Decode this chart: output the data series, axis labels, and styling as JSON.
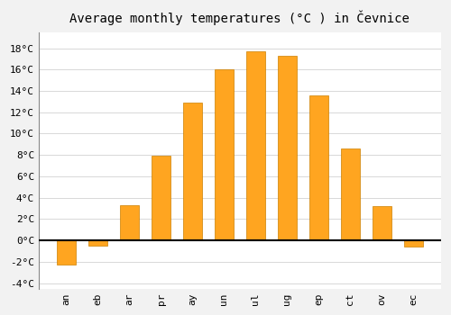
{
  "title": "Average monthly temperatures (°C ) in Čevnice",
  "months": [
    "an",
    "eb",
    "ar",
    "pr",
    "ay",
    "un",
    "ul",
    "ug",
    "ep",
    "ct",
    "ov",
    "ec"
  ],
  "values": [
    -2.3,
    -0.5,
    3.3,
    7.9,
    12.9,
    16.0,
    17.7,
    17.3,
    13.6,
    8.6,
    3.2,
    -0.6
  ],
  "bar_color": "#FFA520",
  "bar_edge_color": "#CC8000",
  "background_color": "#f2f2f2",
  "plot_bg_color": "#ffffff",
  "ylim": [
    -4.5,
    19.5
  ],
  "yticks": [
    -4,
    -2,
    0,
    2,
    4,
    6,
    8,
    10,
    12,
    14,
    16,
    18
  ],
  "grid_color": "#d8d8d8",
  "zero_line_color": "#000000",
  "title_fontsize": 10,
  "tick_fontsize": 8,
  "bar_width": 0.6
}
